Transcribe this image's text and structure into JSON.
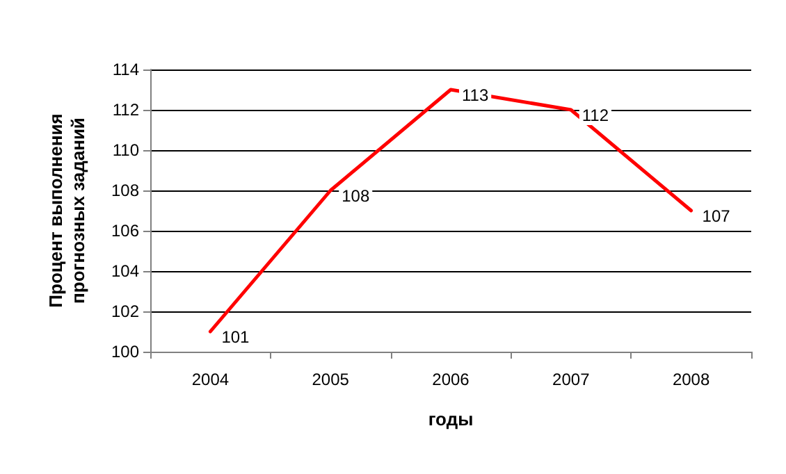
{
  "chart_data": {
    "type": "line",
    "xlabel": "годы",
    "ylabel": "Процент выполнения прогнозных заданий",
    "categories": [
      "2004",
      "2005",
      "2006",
      "2007",
      "2008"
    ],
    "series": [
      {
        "color": "#ff0000",
        "values": [
          101,
          108,
          113,
          112,
          107
        ]
      }
    ],
    "ylim": [
      100,
      114
    ],
    "yticks": [
      100,
      102,
      104,
      106,
      108,
      110,
      112,
      114
    ],
    "grid": "y",
    "data_labels": true,
    "marker": "none",
    "line_style": "solid"
  }
}
